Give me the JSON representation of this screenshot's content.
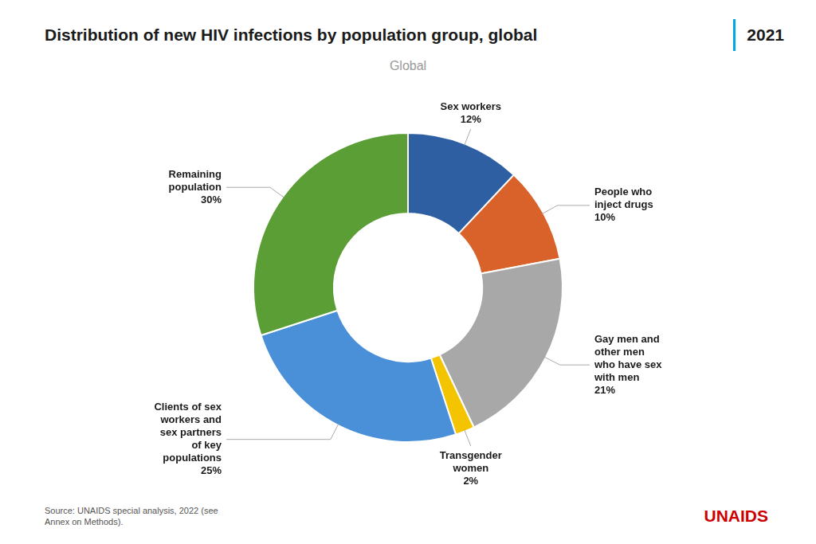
{
  "chart_data": {
    "type": "doughnut",
    "title": "Distribution of new HIV infections by population group, global",
    "subtitle": "Global",
    "categories": [
      "Sex workers",
      "People who\ninject drugs",
      "Gay men and\nother men\nwho have sex\nwith men",
      "Transgender\nwomen",
      "Clients of sex\nworkers and\nsex partners\nof key\npopulations",
      "Remaining\npopulation"
    ],
    "values": [
      12,
      10,
      21,
      2,
      25,
      30
    ],
    "value_labels": [
      "12%",
      "10%",
      "21%",
      "2%",
      "25%",
      "30%"
    ],
    "data_labels": true,
    "colors": [
      "#2E5FA3",
      "#D9622B",
      "#A8A8A8",
      "#F5C400",
      "#4A90D9",
      "#5B9E35"
    ],
    "legend": false,
    "annotations": [
      "2021",
      "Source: UNAIDS special analysis, 2022 (see\nAnnex on Methods).",
      "UNAIDS"
    ]
  }
}
